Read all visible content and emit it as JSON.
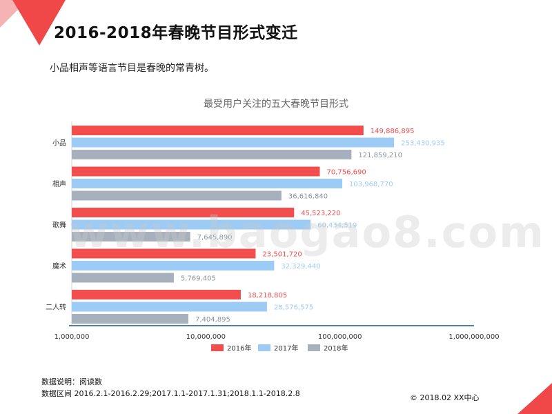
{
  "slide": {
    "title": "2016-2018年春晚节目形式变迁",
    "subtitle": "小品相声等语言节目是春晚的常青树。",
    "note_source": "数据说明：阅读数",
    "note_range": "数据区间 2016.2.1-2016.2.29;2017.1.1-2017.1.31;2018.1.1-2018.2.8",
    "copyright": "© 2018.02 XX中心",
    "watermark": "www.baogao8.com"
  },
  "colors": {
    "s2016": "#F24E4E",
    "s2017": "#9CCBF6",
    "s2018": "#A7B1BD",
    "axis": "#4E7FA8",
    "decor": "#F04848"
  },
  "chart_data": {
    "type": "bar",
    "orientation": "horizontal",
    "title": "最受用户关注的五大春晚节目形式",
    "categories": [
      "小品",
      "相声",
      "歌舞",
      "魔术",
      "二人转"
    ],
    "series": [
      {
        "name": "2016年",
        "values": [
          149886895,
          70756690,
          45523220,
          23501720,
          18218805
        ],
        "labels": [
          "149,886,895",
          "70,756,690",
          "45,523,220",
          "23,501,720",
          "18,218,805"
        ]
      },
      {
        "name": "2017年",
        "values": [
          253430935,
          103968770,
          60434519,
          32329440,
          28576575
        ],
        "labels": [
          "253,430,935",
          "103,968,770",
          "60,434,519",
          "32,329,440",
          "28,576,575"
        ]
      },
      {
        "name": "2018年",
        "values": [
          121859210,
          36616840,
          7645890,
          5769405,
          7404895
        ],
        "labels": [
          "121,859,210",
          "36,616,840",
          "7,645,890",
          "5,769,405",
          "7,404,895"
        ]
      }
    ],
    "x_scale": "log",
    "xlim": [
      1000000,
      1000000000
    ],
    "x_ticks": [
      1000000,
      10000000,
      100000000,
      1000000000
    ],
    "x_tick_labels": [
      "1,000,000",
      "10,000,000",
      "100,000,000",
      "1,000,000,000"
    ],
    "legend_position": "bottom",
    "grid": false
  }
}
